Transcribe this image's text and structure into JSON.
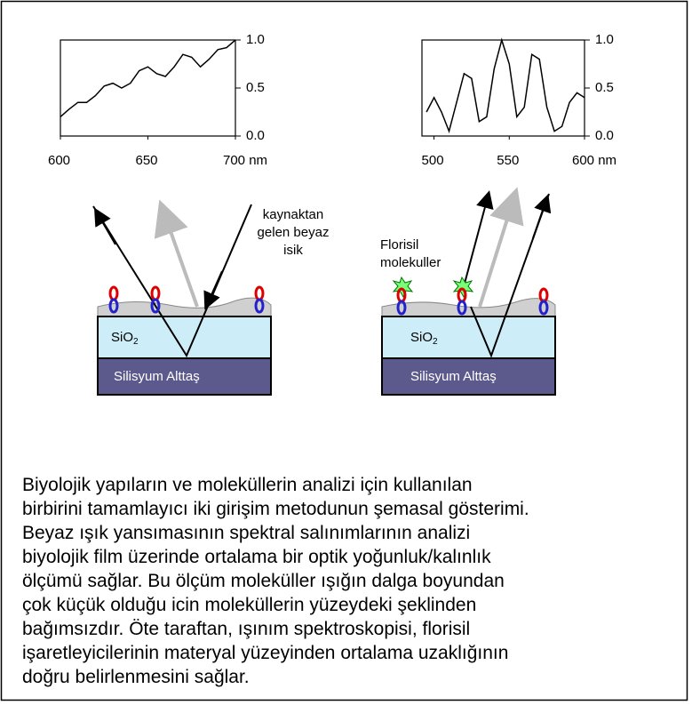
{
  "chart_data": [
    {
      "type": "line",
      "color": "#000000",
      "x": [
        600,
        605,
        610,
        615,
        620,
        625,
        630,
        635,
        640,
        645,
        650,
        655,
        660,
        665,
        670,
        675,
        680,
        685,
        690,
        695,
        700
      ],
      "values": [
        0.2,
        0.28,
        0.35,
        0.35,
        0.42,
        0.52,
        0.55,
        0.5,
        0.55,
        0.68,
        0.72,
        0.65,
        0.62,
        0.72,
        0.85,
        0.82,
        0.72,
        0.8,
        0.9,
        0.92,
        1.0
      ],
      "xlim": [
        600,
        700
      ],
      "ylim": [
        0,
        1
      ],
      "xticks": [
        600,
        650,
        {
          "value": 700,
          "label": "700 nm"
        }
      ],
      "yticks": [
        {
          "value": 0,
          "label": "0.0"
        },
        0.5,
        {
          "value": 1,
          "label": "1.0"
        }
      ]
    },
    {
      "type": "line",
      "color": "#000000",
      "x": [
        495,
        500,
        505,
        510,
        515,
        520,
        525,
        530,
        535,
        540,
        545,
        550,
        555,
        560,
        565,
        570,
        575,
        580,
        585,
        590,
        595,
        600
      ],
      "values": [
        0.25,
        0.4,
        0.25,
        0.05,
        0.35,
        0.65,
        0.6,
        0.15,
        0.2,
        0.7,
        1.0,
        0.75,
        0.2,
        0.3,
        0.85,
        0.8,
        0.3,
        0.05,
        0.1,
        0.35,
        0.45,
        0.4
      ],
      "xlim": [
        492,
        600
      ],
      "ylim": [
        0,
        1
      ],
      "xticks": [
        500,
        550,
        {
          "value": 600,
          "label": "600 nm"
        }
      ],
      "yticks": [
        {
          "value": 0,
          "label": "0.0"
        },
        0.5,
        {
          "value": 1,
          "label": "1.0"
        }
      ]
    }
  ],
  "diagram": {
    "source_label": [
      "kaynaktan",
      "gelen beyaz",
      "isik"
    ],
    "fluor_label": [
      "Florisil",
      "molekuller"
    ],
    "layer_left": {
      "base": "SiO",
      "sub": "2"
    },
    "layer_right": {
      "base": "SiO",
      "sub": "2"
    },
    "substrate_left": "Silisyum Alttaş",
    "substrate_right": "Silisyum Alttaş"
  },
  "caption": [
    "Biyolojik yapıların ve moleküllerin analizi için kullanılan",
    "birbirini tamamlayıcı iki girişim metodunun şemasal gösterimi.",
    "Beyaz ışık yansımasının spektral salınımlarının analizi",
    "biyolojik film üzerinde ortalama bir optik yoğunluk/kalınlık",
    "ölçümü sağlar. Bu ölçüm moleküller ışığın dalga boyundan",
    "çok küçük olduğu icin moleküllerin yüzeydeki şeklinden",
    "bağımsızdır. Öte taraftan, ışınım spektroskopisi, florisil",
    "işaretleyicilerinin materyal yüzeyinden ortalama uzaklığının",
    "doğru belirlenmesini sağlar."
  ]
}
